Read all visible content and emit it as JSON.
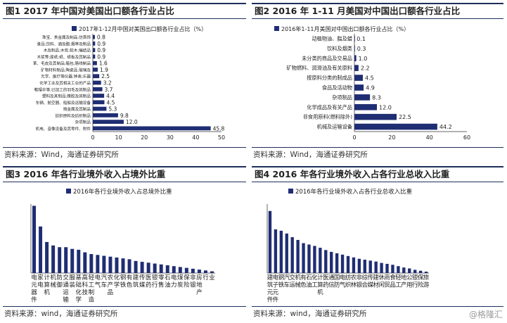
{
  "panels": [
    {
      "title": "图1  2017 年中国对美国出口额各行业占比",
      "source": "资料来源：Wind，海通证券研究所",
      "chart_data": {
        "type": "bar",
        "orientation": "horizontal",
        "legend": "2017年1-12月中国对美国出口额各行业占比（%）",
        "categories": [
          "机电、音像设备及其零件、附件",
          "杂项制品",
          "纺织原料及纺织制品",
          "贱金属及其制品",
          "车辆、航空器、船舶及运输设备",
          "塑料及其制品;橡胶及其制品",
          "鞋帽伞等;已加工的羽毛及其制品",
          "化学工业及其相关工业的产品",
          "光学、医疗等仪器;钟表;乐器",
          "矿物材料制品;陶瓷品;玻璃及",
          "革、毛皮及其制品;箱包;肠线制品",
          "木浆等;废纸;纸、纸板及其制品",
          "木及制品;木炭;软木;编结品",
          "食品;饮料、酒及醋;烟草及制品",
          "珠宝、贵金属及制品;仿首饰"
        ],
        "values": [
          45.8,
          12.0,
          9.8,
          5.3,
          4.5,
          4.4,
          3.7,
          3.2,
          2.5,
          1.9,
          1.6,
          0.9,
          0.9,
          0.9,
          0.8
        ],
        "value_labels": [
          "45.8",
          "12.0",
          "9.8",
          "5.3",
          "4.5",
          "4.4",
          "3.7",
          "3.2",
          "2.5",
          "1.9",
          "1.6",
          "0.9",
          "0.9",
          "0.9",
          "0.8"
        ],
        "xlim": [
          0,
          50
        ],
        "xticks": [
          "0",
          "10",
          "20",
          "30",
          "40",
          "50"
        ],
        "color": "#1f2d73"
      }
    },
    {
      "title": "图2  2016 年 1-11 月美国对中国出口额各行业占比",
      "source": "资料来源：Wind，海通证券研究所",
      "chart_data": {
        "type": "bar",
        "orientation": "horizontal",
        "legend": "2016年1-11月美国对中国出口额各行业占比（%）",
        "categories": [
          "机械及运输设备",
          "非食用原料(燃料除外)",
          "化学成品及有关产品",
          "杂项制品",
          "食品及活动物",
          "按原料分类的制成品",
          "矿物燃料、润滑油及有关原料",
          "未分类的商品及交易品",
          "饮料及烟类",
          "动植物油、脂及蜡"
        ],
        "values": [
          44.2,
          22.5,
          12.0,
          8.3,
          4.9,
          4.5,
          2.2,
          1.0,
          0.3,
          0.1
        ],
        "value_labels": [
          "44.2",
          "22.5",
          "12.0",
          "8.3",
          "4.9",
          "4.5",
          "2.2",
          "1.0",
          "0.3",
          "0.1"
        ],
        "xlim": [
          0,
          60
        ],
        "xticks": [
          "0",
          "20",
          "40",
          "60"
        ],
        "color": "#1f2d73"
      }
    },
    {
      "title": "图3  2016 年各行业境外收入占境外比重",
      "source": "资料来源：wind，海通证券研究所",
      "chart_data": {
        "type": "bar",
        "orientation": "vertical",
        "legend": "2016年各行业境外收入占总境外比重",
        "categories": [
          "电子元件",
          "家用电器",
          "计算机",
          "机械",
          "防御",
          "交通运输",
          "服装",
          "基础化学",
          "高科技设备",
          "轻工制造",
          "电气设备",
          "汽车",
          "农产品",
          "化学品",
          "钢铁",
          "有色金属",
          "建筑",
          "传媒",
          "医药",
          "银行",
          "零售",
          "石油",
          "电力",
          "煤炭",
          "保险",
          "非银金融",
          "房地产",
          "行业",
          "旅游"
        ],
        "column_labels": [
          "电元器件",
          "家电",
          "计算机",
          "机械",
          "防御",
          "交通运输",
          "服装",
          "基础化学",
          "高科技",
          "轻工制造",
          "电气",
          "汽车",
          "农产品",
          "化学",
          "钢铁",
          "有色",
          "建筑",
          "传媒",
          "医药",
          "银行",
          "零售",
          "石油",
          "电力",
          "煤炭",
          "保险",
          "非银",
          "房地产",
          "行",
          "业"
        ],
        "values": [
          39,
          27,
          18,
          16,
          15,
          15,
          14,
          13.5,
          12,
          11,
          10.5,
          10,
          9.5,
          9,
          8.5,
          8,
          7,
          6.5,
          6,
          5.5,
          5,
          4.5,
          4,
          3.5,
          3,
          2.5,
          2,
          1.5,
          1
        ],
        "ylim": [
          0,
          40
        ],
        "color": "#1f2d73"
      }
    },
    {
      "title": "图4  2016 年各行业境外收入占各行业总收入比重",
      "source": "资料来源：wind，海通证券研究所",
      "chart_data": {
        "type": "bar",
        "orientation": "vertical",
        "legend": "2016年各行业境外收入占各行业总收入比重",
        "categories": [
          "建筑",
          "电子元件",
          "钢铁",
          "汽车",
          "交通运输",
          "机械",
          "有色",
          "石油",
          "化工",
          "计算机",
          "医药",
          "通信",
          "国防",
          "电气",
          "纺织",
          "农林",
          "非银",
          "综合",
          "传媒",
          "建材",
          "休闲",
          "商贸",
          "食品",
          "轻工",
          "地产",
          "公用",
          "银行",
          "保险",
          "旅游"
        ],
        "column_labels": [
          "建筑元件",
          "电子元件",
          "钢铁",
          "汽车",
          "交运",
          "机械",
          "有色",
          "石油",
          "化工",
          "计算机",
          "医药",
          "通信",
          "国防",
          "电气",
          "纺织",
          "农林",
          "非银",
          "综合",
          "传媒",
          "建材",
          "休闲",
          "商贸",
          "食品",
          "轻工",
          "地产",
          "公用",
          "银行",
          "保险",
          "旅游"
        ],
        "values": [
          13.5,
          9.5,
          9.2,
          8.6,
          7.8,
          7.2,
          6.5,
          6.2,
          5.9,
          5.5,
          5.0,
          4.6,
          4.3,
          4.0,
          3.7,
          3.4,
          3.1,
          2.9,
          2.7,
          2.5,
          2.2,
          2.0,
          1.8,
          1.5,
          1.2,
          1.0,
          0.7,
          0.5,
          0.3
        ],
        "ylim": [
          0,
          15
        ],
        "color": "#1f2d73"
      }
    }
  ],
  "watermark": "@格隆汇"
}
